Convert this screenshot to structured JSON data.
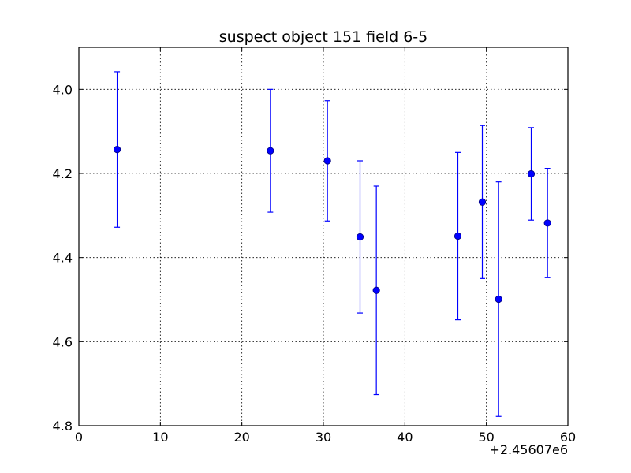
{
  "chart_data": {
    "type": "scatter",
    "title": "suspect object 151 field 6-5",
    "xlabel": "",
    "ylabel": "",
    "x_offset_label": "+2.45607e6",
    "xlim": [
      0,
      60
    ],
    "ylim": [
      3.9,
      4.8
    ],
    "y_inverted": true,
    "grid": true,
    "x_ticks": [
      0,
      10,
      20,
      30,
      40,
      50,
      60
    ],
    "x_tick_labels": [
      "0",
      "10",
      "20",
      "30",
      "40",
      "50",
      "60"
    ],
    "y_ticks": [
      4.0,
      4.2,
      4.4,
      4.6,
      4.8
    ],
    "y_tick_labels": [
      "4.0",
      "4.2",
      "4.4",
      "4.6",
      "4.8"
    ],
    "colors": {
      "points": "#0000ff",
      "errorbars": "#0000ff"
    },
    "points": [
      {
        "x": 4.7,
        "y": 4.143,
        "err": 0.185
      },
      {
        "x": 23.5,
        "y": 4.146,
        "err": 0.146
      },
      {
        "x": 30.5,
        "y": 4.17,
        "err": 0.143
      },
      {
        "x": 34.5,
        "y": 4.351,
        "err": 0.181
      },
      {
        "x": 36.5,
        "y": 4.478,
        "err": 0.248
      },
      {
        "x": 46.5,
        "y": 4.349,
        "err": 0.199
      },
      {
        "x": 49.5,
        "y": 4.268,
        "err": 0.182
      },
      {
        "x": 51.5,
        "y": 4.499,
        "err": 0.279
      },
      {
        "x": 55.5,
        "y": 4.201,
        "err": 0.11
      },
      {
        "x": 57.5,
        "y": 4.318,
        "err": 0.13
      }
    ]
  }
}
